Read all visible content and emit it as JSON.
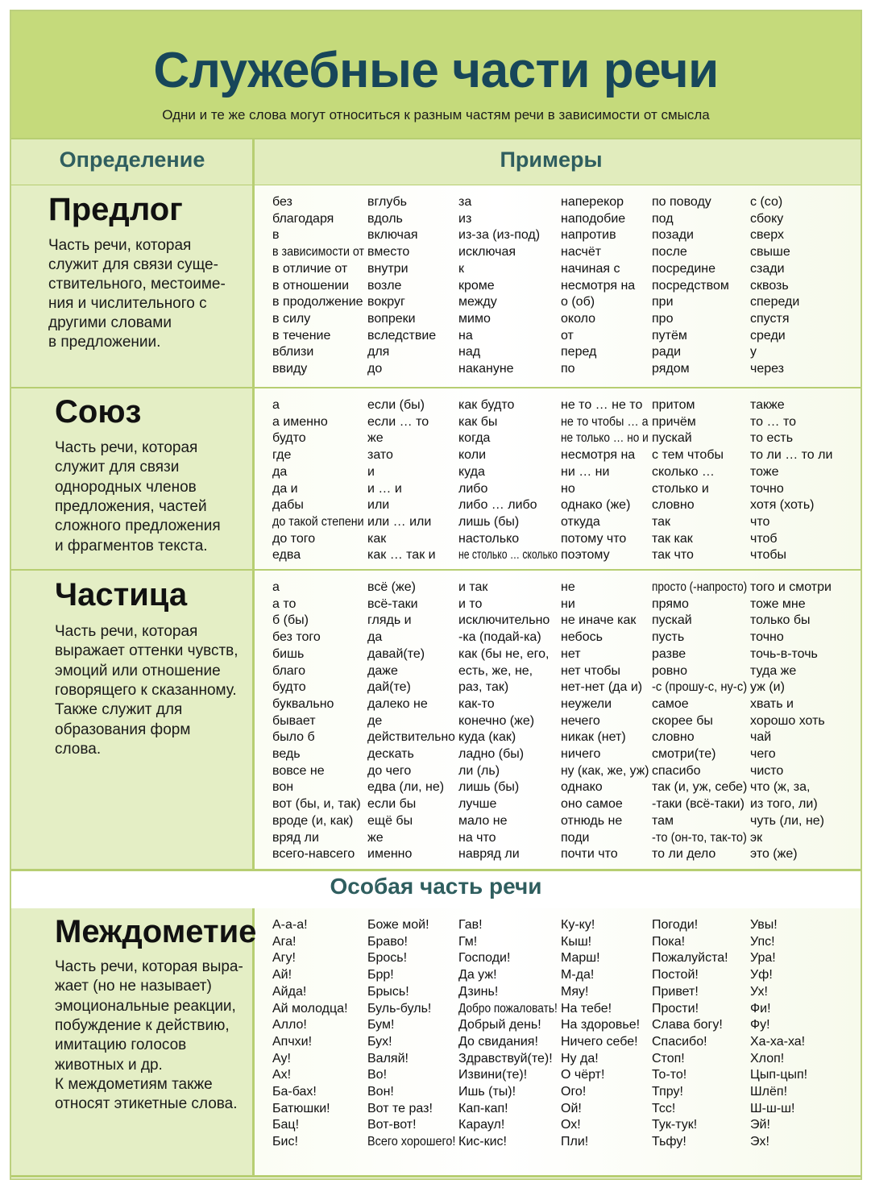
{
  "header": {
    "title": "Служебные части речи",
    "subtitle": "Одни и те же слова могут относиться к разным частям речи в зависимости от смысла"
  },
  "columns_header": {
    "definition": "Определение",
    "examples": "Примеры"
  },
  "special_heading": "Особая часть речи",
  "sections": [
    {
      "name": "Предлог",
      "definition": [
        "Часть речи, которая",
        "служит для связи суще-",
        "ствительного, местоиме-",
        "ния и числительного с",
        "другими словами",
        "в предложении."
      ],
      "examples": [
        [
          "без",
          "благодаря",
          "в",
          "в зависимости от",
          "в отличие от",
          "в отношении",
          "в продолжение",
          "в силу",
          "в течение",
          "вблизи",
          "ввиду"
        ],
        [
          "вглубь",
          "вдоль",
          "включая",
          "вместо",
          "внутри",
          "возле",
          "вокруг",
          "вопреки",
          "вследствие",
          "для",
          "до"
        ],
        [
          "за",
          "из",
          "из-за (из-под)",
          "исключая",
          "к",
          "кроме",
          "между",
          "мимо",
          "на",
          "над",
          "накануне"
        ],
        [
          "наперекор",
          "наподобие",
          "напротив",
          "насчёт",
          "начиная с",
          "несмотря на",
          "о (об)",
          "около",
          "от",
          "перед",
          "по"
        ],
        [
          "по поводу",
          "под",
          "позади",
          "после",
          "посредине",
          "посредством",
          "при",
          "про",
          "путём",
          "ради",
          "рядом"
        ],
        [
          "с (со)",
          "сбоку",
          "сверх",
          "свыше",
          "сзади",
          "сквозь",
          "спереди",
          "спустя",
          "среди",
          "у",
          "через"
        ]
      ]
    },
    {
      "name": "Союз",
      "definition": [
        "Часть речи, которая",
        "служит для связи",
        "однородных членов",
        "предложения, частей",
        "сложного предложения",
        "и фрагментов текста."
      ],
      "examples": [
        [
          "а",
          "а именно",
          "будто",
          "где",
          "да",
          "да и",
          "дабы",
          "до такой степени",
          "до того",
          "едва"
        ],
        [
          "если (бы)",
          "если … то",
          "же",
          "зато",
          "и",
          "и … и",
          "или",
          "или … или",
          "как",
          "как … так и"
        ],
        [
          "как будто",
          "как бы",
          "когда",
          "коли",
          "куда",
          "либо",
          "либо … либо",
          "лишь (бы)",
          "настолько",
          "не столько … сколько"
        ],
        [
          "не то … не то",
          "не то чтобы … а",
          "не только … но и",
          "несмотря на",
          "ни … ни",
          "но",
          "однако (же)",
          "откуда",
          "потому что",
          "поэтому"
        ],
        [
          "притом",
          "причём",
          "пускай",
          "с тем чтобы",
          "сколько …",
          "столько и",
          "словно",
          "так",
          "так как",
          "так что"
        ],
        [
          "также",
          "то … то",
          "то есть",
          "то ли … то ли",
          "тоже",
          "точно",
          "хотя (хоть)",
          "что",
          "чтоб",
          "чтобы"
        ]
      ]
    },
    {
      "name": "Частица",
      "definition": [
        "Часть речи, которая",
        "выражает оттенки чувств,",
        "эмоций или отношение",
        "говорящего к сказанному.",
        "Также служит для",
        "образования форм",
        "слова."
      ],
      "examples": [
        [
          "а",
          "а то",
          "б (бы)",
          "без того",
          "бишь",
          "благо",
          "будто",
          "буквально",
          "бывает",
          "было б",
          "ведь",
          "вовсе не",
          "вон",
          "вот (бы, и, так)",
          "вроде (и, как)",
          "вряд ли",
          "всего-навсего"
        ],
        [
          "всё (же)",
          "всё-таки",
          "глядь и",
          "да",
          "давай(те)",
          "даже",
          "дай(те)",
          "далеко не",
          "де",
          "действительно",
          "дескать",
          "до чего",
          "едва (ли, не)",
          "если бы",
          "ещё бы",
          "же",
          "именно"
        ],
        [
          "и так",
          "и то",
          "исключительно",
          "-ка (подай-ка)",
          "как (бы не, его,",
          "есть, же, не,",
          "раз, так)",
          "как-то",
          "конечно (же)",
          "куда (как)",
          "ладно (бы)",
          "ли (ль)",
          "лишь (бы)",
          "лучше",
          "мало не",
          "на что",
          "навряд ли"
        ],
        [
          "не",
          "ни",
          "не иначе как",
          "небось",
          "нет",
          "нет чтобы",
          "нет-нет (да и)",
          "неужели",
          "нечего",
          "никак (нет)",
          "ничего",
          "ну (как, же, уж)",
          "однако",
          "оно самое",
          "отнюдь не",
          "поди",
          "почти что"
        ],
        [
          "просто (-напросто)",
          "прямо",
          "пускай",
          "пусть",
          "разве",
          "ровно",
          "-с (прошу-с, ну-с)",
          "самое",
          "скорее бы",
          "словно",
          "смотри(те)",
          "спасибо",
          "так (и, уж, себе)",
          "-таки (всё-таки)",
          "там",
          "-то (он-то, так-то)",
          "то ли дело"
        ],
        [
          "того и смотри",
          "тоже мне",
          "только бы",
          "точно",
          "точь-в-точь",
          "туда же",
          "уж (и)",
          "хвать и",
          "хорошо хоть",
          "чай",
          "чего",
          "чисто",
          "что (ж, за,",
          "из того, ли)",
          "чуть (ли, не)",
          "эк",
          "это (же)"
        ]
      ]
    },
    {
      "name": "Междометие",
      "definition": [
        "Часть речи, которая выра-",
        "жает (но не называет)",
        "эмоциональные реакции,",
        "побуждение к действию,",
        "имитацию голосов",
        "животных и др.",
        "К междометиям также",
        "относят этикетные слова."
      ],
      "examples": [
        [
          "А-а-а!",
          "Ага!",
          "Агу!",
          "Ай!",
          "Айда!",
          "Ай молодца!",
          "Алло!",
          "Апчхи!",
          "Ау!",
          "Ах!",
          "Ба-бах!",
          "Батюшки!",
          "Бац!",
          "Бис!"
        ],
        [
          "Боже мой!",
          "Браво!",
          "Брось!",
          "Брр!",
          "Брысь!",
          "Буль-буль!",
          "Бум!",
          "Бух!",
          "Валяй!",
          "Во!",
          "Вон!",
          "Вот те раз!",
          "Вот-вот!",
          "Всего хорошего!"
        ],
        [
          "Гав!",
          "Гм!",
          "Господи!",
          "Да уж!",
          "Дзинь!",
          "Добро пожаловать!",
          "Добрый день!",
          "До свидания!",
          "Здравствуй(те)!",
          "Извини(те)!",
          "Ишь (ты)!",
          "Кап-кап!",
          "Караул!",
          "Кис-кис!"
        ],
        [
          "Ку-ку!",
          "Кыш!",
          "Марш!",
          "М-да!",
          "Мяу!",
          "На тебе!",
          "На здоровье!",
          "Ничего себе!",
          "Ну да!",
          "О чёрт!",
          "Ого!",
          "Ой!",
          "Ох!",
          "Пли!"
        ],
        [
          "Погоди!",
          "Пока!",
          "Пожалуйста!",
          "Постой!",
          "Привет!",
          "Прости!",
          "Слава богу!",
          "Спасибо!",
          "Стоп!",
          "То-то!",
          "Тпру!",
          "Тсс!",
          "Тук-тук!",
          "Тьфу!"
        ],
        [
          "Увы!",
          "Упс!",
          "Ура!",
          "Уф!",
          "Ух!",
          "Фи!",
          "Фу!",
          "Ха-ха-ха!",
          "Хлоп!",
          "Цып-цып!",
          "Шлёп!",
          "Ш-ш-ш!",
          "Эй!",
          "Эх!"
        ]
      ]
    }
  ]
}
